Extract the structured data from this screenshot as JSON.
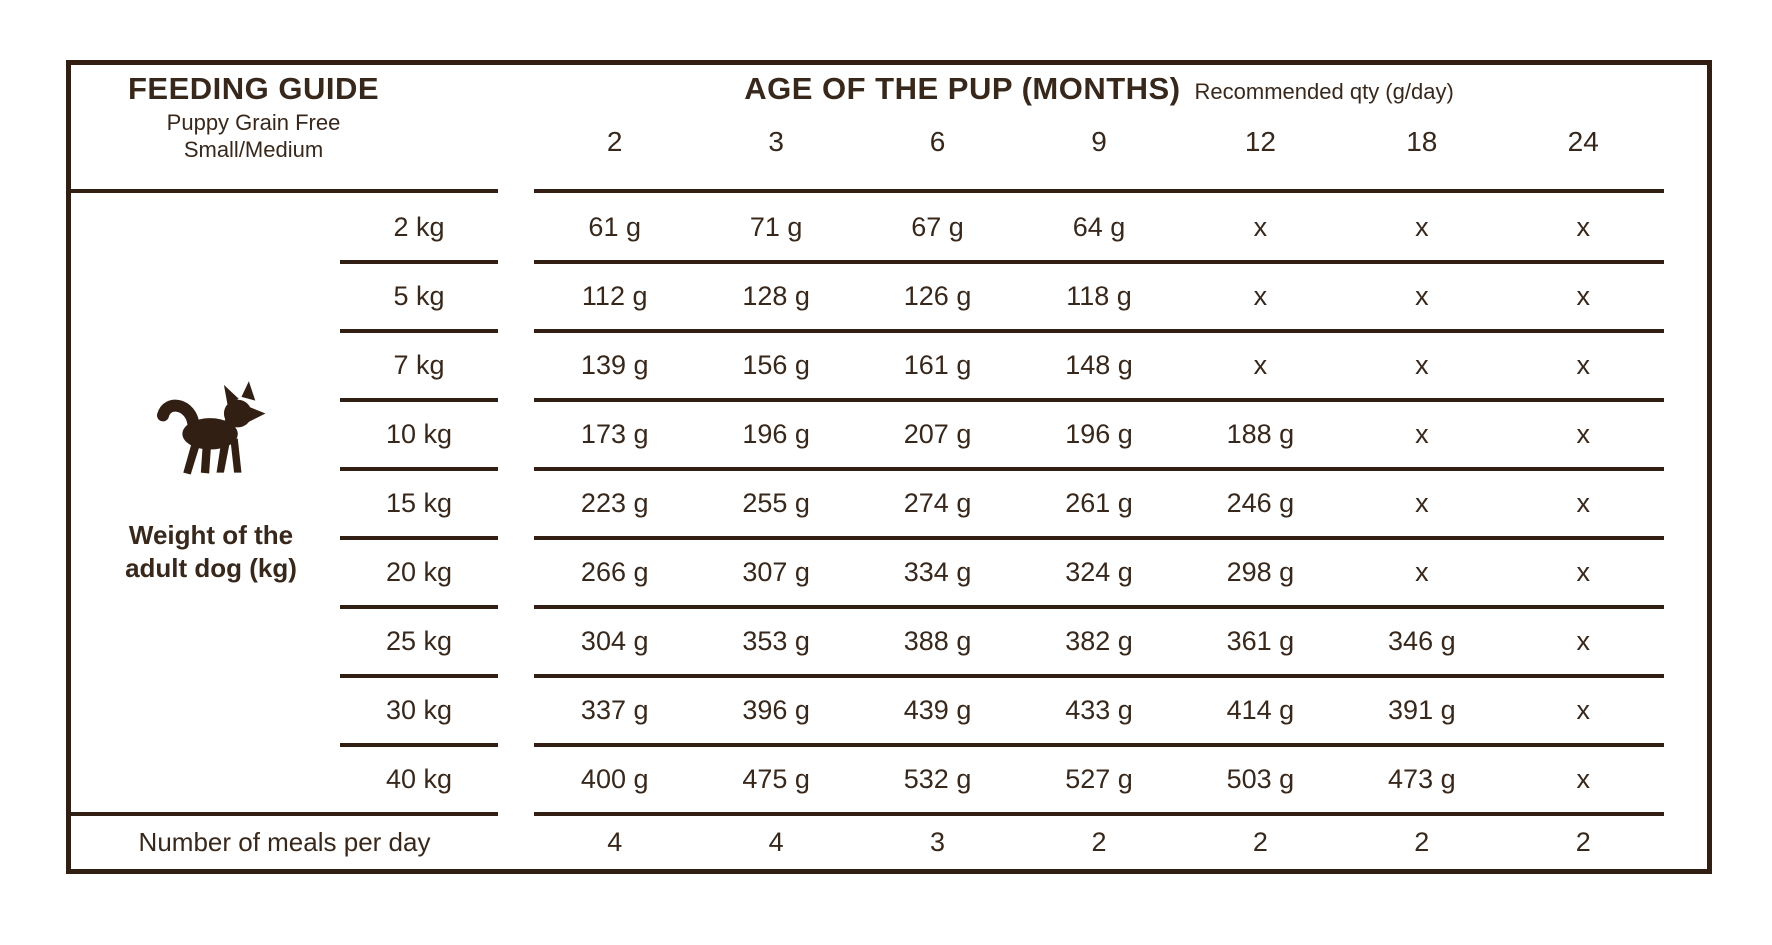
{
  "colors": {
    "ink": "#311f13",
    "text": "#38281c",
    "background": "#ffffff"
  },
  "header": {
    "title": "FEEDING GUIDE",
    "subtitle_line1": "Puppy Grain Free",
    "subtitle_line2": "Small/Medium",
    "age_header": "AGE OF THE PUP (MONTHS)",
    "age_note": "Recommended qty (g/day)"
  },
  "row_axis": {
    "icon": "dog-icon",
    "label_line1": "Weight of the",
    "label_line2": "adult dog (kg)"
  },
  "chart_data": {
    "type": "table",
    "title": "FEEDING GUIDE — Puppy Grain Free Small/Medium",
    "xlabel": "AGE OF THE PUP (MONTHS)",
    "ylabel": "Weight of the adult dog (kg)",
    "unit": "g/day",
    "columns": [
      "2",
      "3",
      "6",
      "9",
      "12",
      "18",
      "24"
    ],
    "rows": [
      {
        "weight": "2 kg",
        "values": [
          "61 g",
          "71 g",
          "67 g",
          "64 g",
          "x",
          "x",
          "x"
        ]
      },
      {
        "weight": "5 kg",
        "values": [
          "112 g",
          "128 g",
          "126 g",
          "118 g",
          "x",
          "x",
          "x"
        ]
      },
      {
        "weight": "7 kg",
        "values": [
          "139 g",
          "156 g",
          "161 g",
          "148 g",
          "x",
          "x",
          "x"
        ]
      },
      {
        "weight": "10 kg",
        "values": [
          "173 g",
          "196 g",
          "207 g",
          "196 g",
          "188 g",
          "x",
          "x"
        ]
      },
      {
        "weight": "15 kg",
        "values": [
          "223 g",
          "255 g",
          "274 g",
          "261 g",
          "246 g",
          "x",
          "x"
        ]
      },
      {
        "weight": "20 kg",
        "values": [
          "266 g",
          "307 g",
          "334 g",
          "324 g",
          "298 g",
          "x",
          "x"
        ]
      },
      {
        "weight": "25 kg",
        "values": [
          "304 g",
          "353 g",
          "388 g",
          "382 g",
          "361 g",
          "346 g",
          "x"
        ]
      },
      {
        "weight": "30 kg",
        "values": [
          "337 g",
          "396 g",
          "439 g",
          "433 g",
          "414 g",
          "391 g",
          "x"
        ]
      },
      {
        "weight": "40 kg",
        "values": [
          "400 g",
          "475 g",
          "532 g",
          "527 g",
          "503 g",
          "473 g",
          "x"
        ]
      }
    ],
    "meals": {
      "label": "Number of meals per day",
      "values": [
        "4",
        "4",
        "3",
        "2",
        "2",
        "2",
        "2"
      ]
    }
  }
}
